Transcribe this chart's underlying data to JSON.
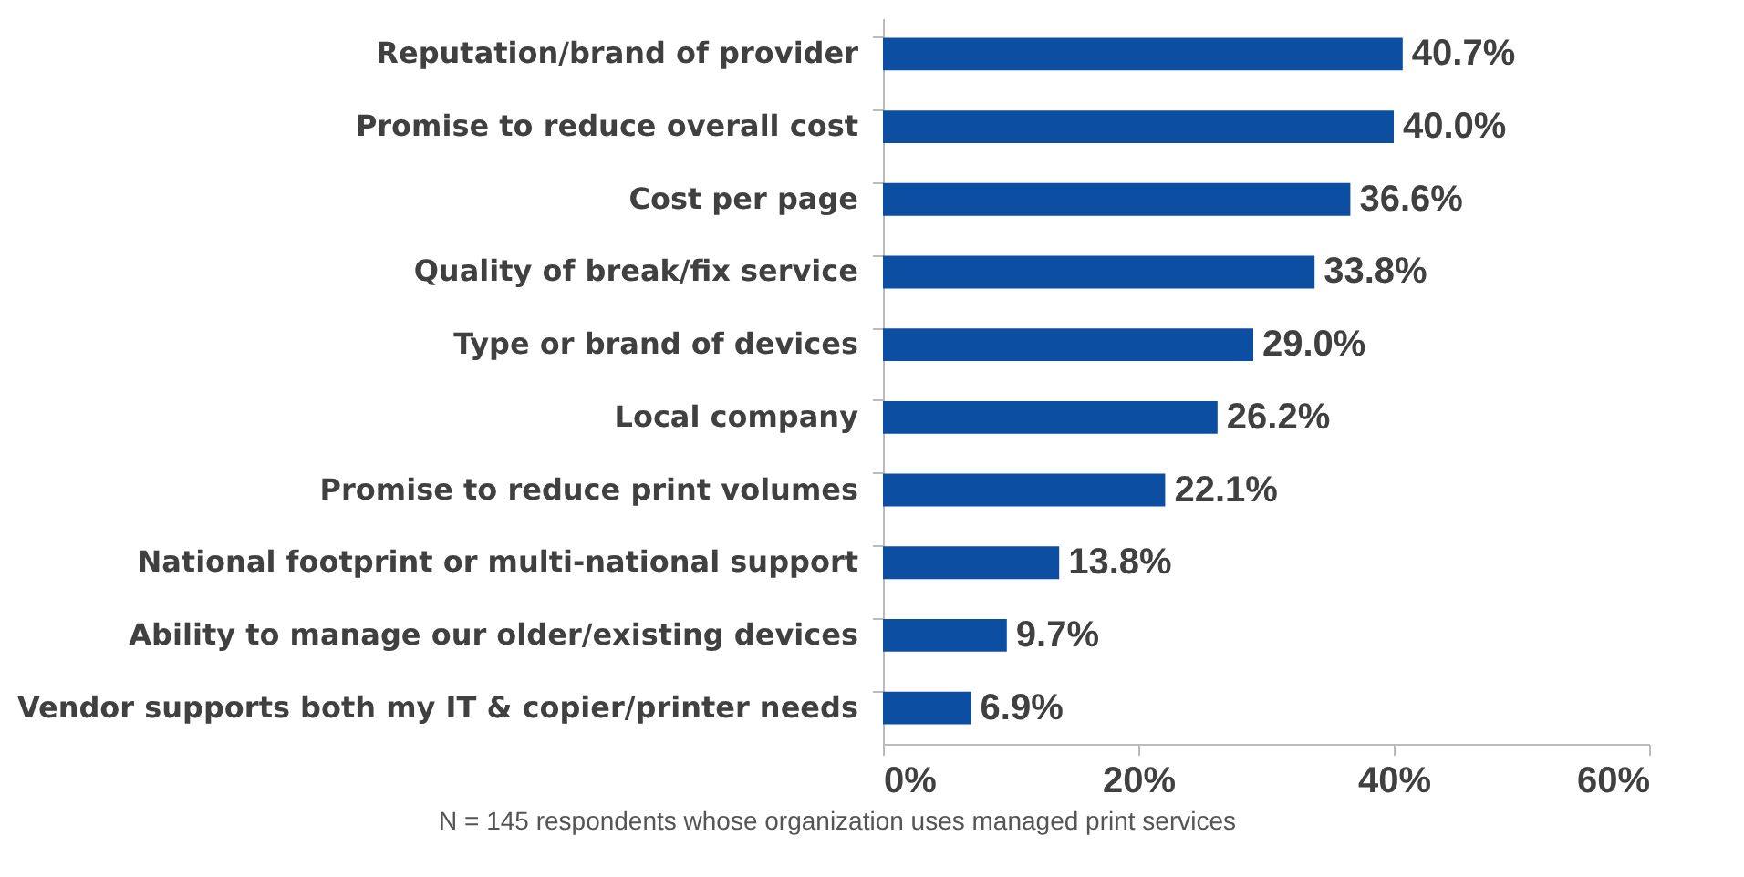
{
  "chart_data": {
    "type": "bar",
    "orientation": "horizontal",
    "categories": [
      "Reputation/brand of provider",
      "Promise to reduce overall cost",
      "Cost per page",
      "Quality of break/fix service",
      "Type or brand of devices",
      "Local company",
      "Promise to reduce print volumes",
      "National footprint or multi-national support",
      "Ability to manage our older/existing devices",
      "Vendor supports both my IT & copier/printer needs"
    ],
    "values": [
      40.7,
      40.0,
      36.6,
      33.8,
      29.0,
      26.2,
      22.1,
      13.8,
      9.7,
      6.9
    ],
    "value_labels": [
      "40.7%",
      "40.0%",
      "36.6%",
      "33.8%",
      "29.0%",
      "26.2%",
      "22.1%",
      "13.8%",
      "9.7%",
      "6.9%"
    ],
    "color": "#0b4ea2",
    "xlim": [
      0,
      60
    ],
    "xticks": [
      {
        "value": 0,
        "label": "0%"
      },
      {
        "value": 20,
        "label": "20%"
      },
      {
        "value": 40,
        "label": "40%"
      },
      {
        "value": 60,
        "label": "60%"
      }
    ],
    "grid": false,
    "annotations": [
      "N = 145 respondents whose organization uses managed print services"
    ]
  }
}
